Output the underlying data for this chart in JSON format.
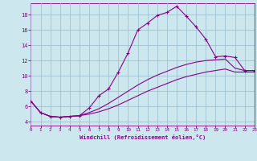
{
  "xlabel": "Windchill (Refroidissement éolien,°C)",
  "bg_color": "#cce8ee",
  "line_color": "#880088",
  "grid_color": "#99bbcc",
  "xlim": [
    0,
    23
  ],
  "ylim": [
    3.5,
    19.5
  ],
  "xticks": [
    0,
    1,
    2,
    3,
    4,
    5,
    6,
    7,
    8,
    9,
    10,
    11,
    12,
    13,
    14,
    15,
    16,
    17,
    18,
    19,
    20,
    21,
    22,
    23
  ],
  "yticks": [
    4,
    6,
    8,
    10,
    12,
    14,
    16,
    18
  ],
  "curve1_x": [
    0,
    1,
    2,
    3,
    4,
    5,
    6,
    7,
    8,
    9,
    10,
    11,
    12,
    13,
    14,
    15,
    16,
    17,
    18,
    19,
    20,
    21,
    22,
    23
  ],
  "curve1_y": [
    6.7,
    5.2,
    4.7,
    4.6,
    4.7,
    4.8,
    5.8,
    7.4,
    8.3,
    10.5,
    13.0,
    16.0,
    16.9,
    17.9,
    18.3,
    19.1,
    17.8,
    16.4,
    14.8,
    12.5,
    12.6,
    12.4,
    10.7,
    10.7
  ],
  "curve2_x": [
    0,
    1,
    2,
    3,
    4,
    5,
    6,
    7,
    8,
    9,
    10,
    11,
    12,
    13,
    14,
    15,
    16,
    17,
    18,
    19,
    20,
    21,
    22,
    23
  ],
  "curve2_y": [
    6.7,
    5.2,
    4.7,
    4.6,
    4.7,
    4.8,
    5.2,
    5.7,
    6.4,
    7.2,
    8.0,
    8.8,
    9.5,
    10.1,
    10.6,
    11.1,
    11.5,
    11.8,
    12.0,
    12.1,
    12.2,
    11.0,
    10.7,
    10.7
  ],
  "curve3_x": [
    0,
    1,
    2,
    3,
    4,
    5,
    6,
    7,
    8,
    9,
    10,
    11,
    12,
    13,
    14,
    15,
    16,
    17,
    18,
    19,
    20,
    21,
    22,
    23
  ],
  "curve3_y": [
    6.7,
    5.2,
    4.7,
    4.6,
    4.7,
    4.8,
    5.0,
    5.3,
    5.7,
    6.2,
    6.8,
    7.4,
    8.0,
    8.5,
    9.0,
    9.5,
    9.9,
    10.2,
    10.5,
    10.7,
    10.9,
    10.5,
    10.5,
    10.5
  ]
}
